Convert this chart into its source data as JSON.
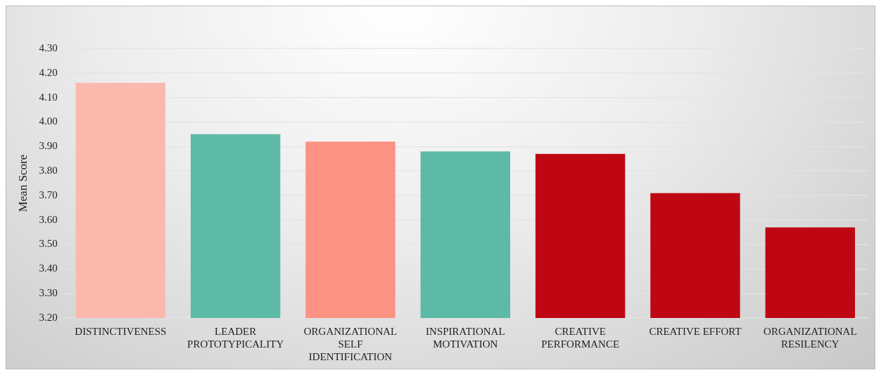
{
  "chart_data": {
    "type": "bar",
    "ylabel": "Mean Score",
    "categories": [
      "DISTINCTIVENESS",
      "LEADER PROTOTYPICALITY",
      "ORGANIZATIONAL SELF IDENTIFICATION",
      "INSPIRATIONAL MOTIVATION",
      "CREATIVE PERFORMANCE",
      "CREATIVE EFFORT",
      "ORGANIZATIONAL RESILENCY"
    ],
    "values": [
      4.16,
      3.95,
      3.92,
      3.88,
      3.87,
      3.71,
      3.57
    ],
    "colors": [
      "#fbb9ae",
      "#5dbaa7",
      "#fb9283",
      "#5dbaa7",
      "#be0712",
      "#be0712",
      "#be0712"
    ],
    "ylim": [
      3.2,
      4.3
    ],
    "yticks": [
      {
        "value": 3.2,
        "label": "3.20"
      },
      {
        "value": 3.3,
        "label": "3.30"
      },
      {
        "value": 3.4,
        "label": "3.40"
      },
      {
        "value": 3.5,
        "label": "3.50"
      },
      {
        "value": 3.6,
        "label": "3.60"
      },
      {
        "value": 3.7,
        "label": "3.70"
      },
      {
        "value": 3.8,
        "label": "3.80"
      },
      {
        "value": 3.9,
        "label": "3.90"
      },
      {
        "value": 4.0,
        "label": "4.00"
      },
      {
        "value": 4.1,
        "label": "4.10"
      },
      {
        "value": 4.2,
        "label": "4.20"
      },
      {
        "value": 4.3,
        "label": "4.30"
      }
    ],
    "grid": "y",
    "legend": false
  }
}
